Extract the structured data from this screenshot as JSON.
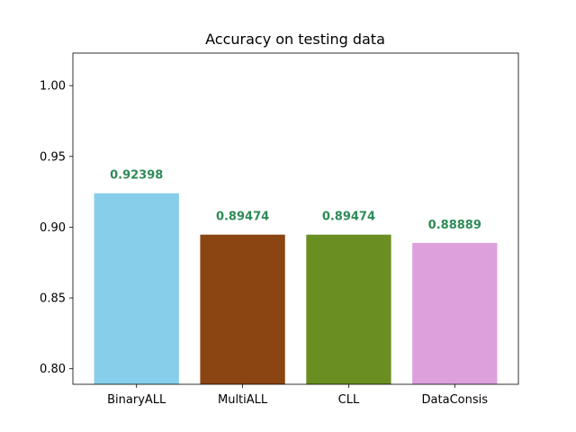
{
  "chart_data": {
    "type": "bar",
    "title": "Accuracy on testing data",
    "xlabel": "",
    "ylabel": "",
    "categories": [
      "BinaryALL",
      "MultiALL",
      "CLL",
      "DataConsis"
    ],
    "values": [
      0.92398,
      0.89474,
      0.89474,
      0.88889
    ],
    "data_labels": [
      "0.92398",
      "0.89474",
      "0.89474",
      "0.88889"
    ],
    "bar_colors": [
      "#87ceeb",
      "#8b4513",
      "#6b8e23",
      "#dda0dd"
    ],
    "label_color": "#2e8b57",
    "ylim": [
      0.789,
      1.023
    ],
    "yticks": [
      0.8,
      0.85,
      0.9,
      0.95,
      1.0
    ],
    "ytick_labels": [
      "0.80",
      "0.85",
      "0.90",
      "0.95",
      "1.00"
    ],
    "grid": false,
    "legend": "none"
  }
}
